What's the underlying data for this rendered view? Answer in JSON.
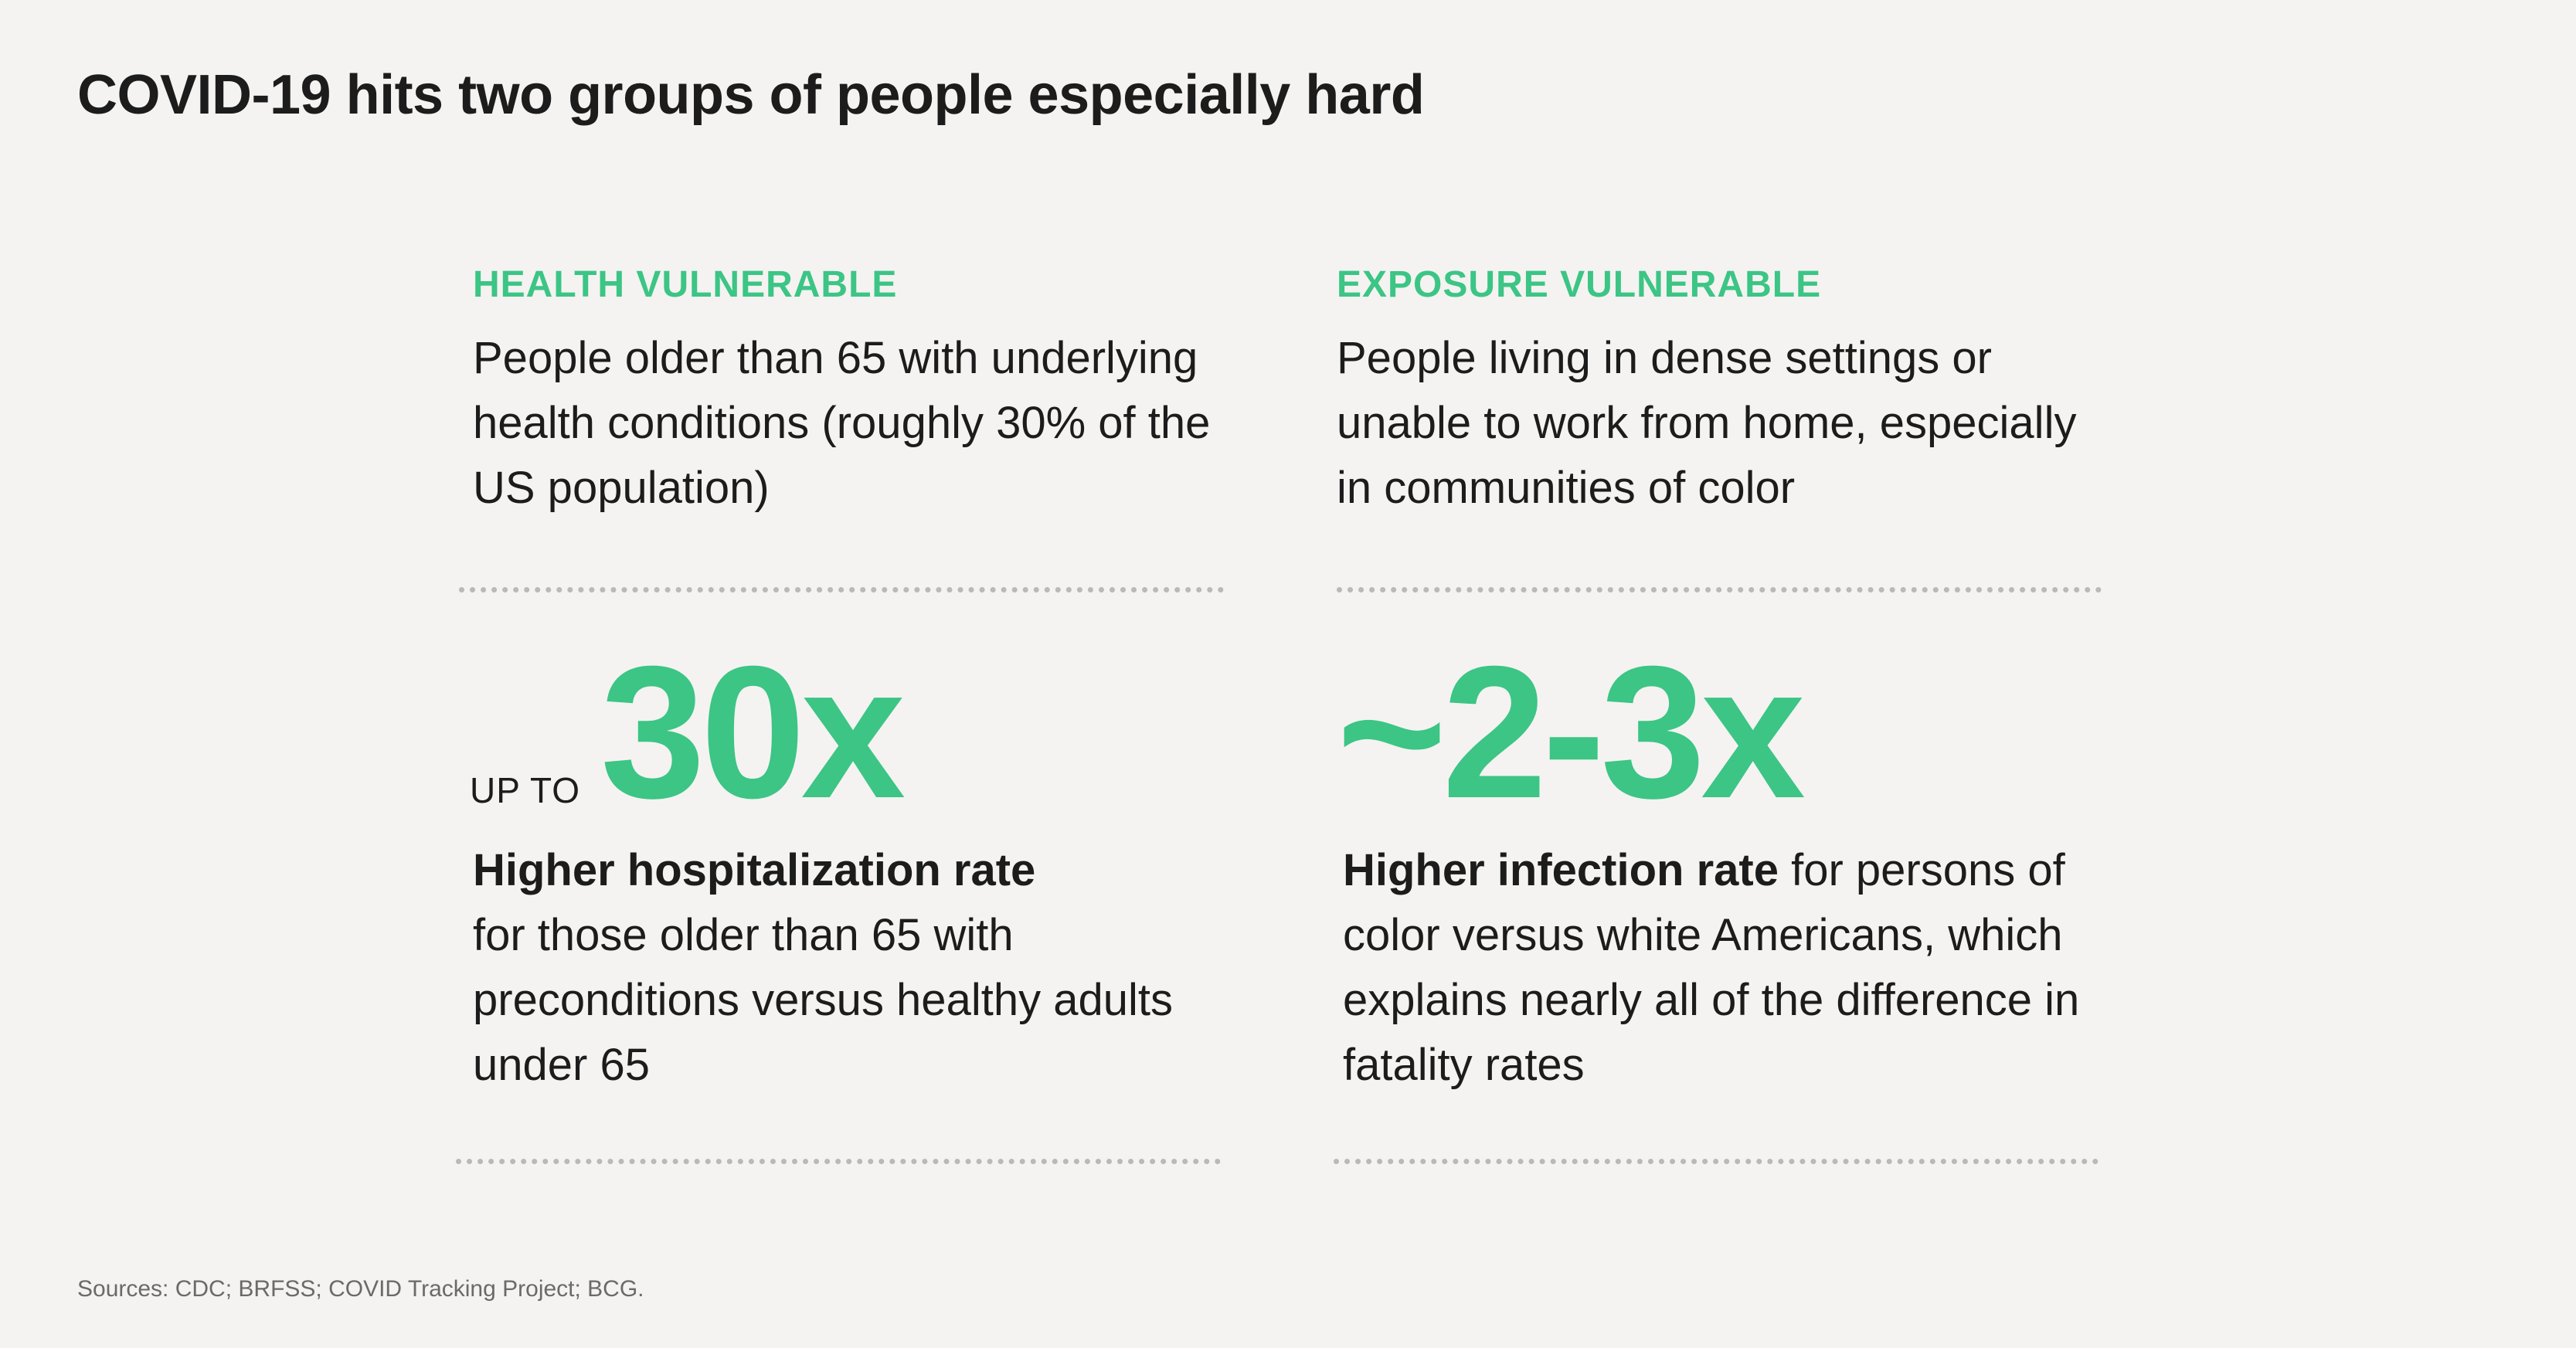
{
  "title": "COVID-19 hits two groups of people especially hard",
  "groups": [
    {
      "label": "HEALTH VULNERABLE",
      "description": "People older than 65 with underlying health conditions (roughly 30% of the US population)",
      "stat_prefix": "UP TO",
      "stat_value": "30x",
      "finding_bold": "Higher hospitalization rate",
      "finding_rest": "for those older than 65 with preconditions versus healthy adults under 65"
    },
    {
      "label": "EXPOSURE VULNERABLE",
      "description": "People living in dense settings or unable to work from home, especially in communities of color",
      "stat_prefix": "",
      "stat_value": "~2-3x",
      "finding_bold": "Higher infection rate",
      "finding_rest": " for persons of color versus white Americans, which explains nearly all of the difference in fatality rates"
    }
  ],
  "source": "Sources: CDC; BRFSS; COVID Tracking Project; BCG.",
  "colors": {
    "accent": "#3cc585",
    "background": "#f4f3f1",
    "divider": "#b9b9b9"
  }
}
